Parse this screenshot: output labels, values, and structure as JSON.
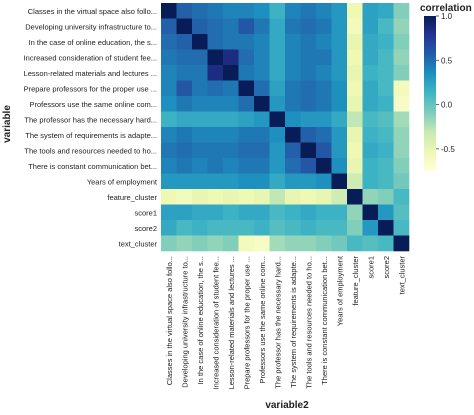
{
  "chart_data": {
    "type": "heatmap",
    "xlabel": "variable2",
    "ylabel": "variable",
    "legend_title": "correlation",
    "colorbar_ticks": [
      {
        "value": 1.0,
        "label": "1.0"
      },
      {
        "value": 0.5,
        "label": "0.5"
      },
      {
        "value": 0.0,
        "label": "0.0"
      },
      {
        "value": -0.5,
        "label": "-0.5"
      }
    ],
    "color_range": [
      -0.75,
      1.0
    ],
    "colorscale": [
      "#ffffd9",
      "#edf8b1",
      "#c7e9b4",
      "#7fcdbb",
      "#41b6c4",
      "#1d91c0",
      "#225ea8",
      "#253494",
      "#081d58"
    ],
    "row_labels": [
      "Classes in the virtual space also follo...",
      "Developing university infrastructure to...",
      "In the case of online education, the s...",
      "Increased consideration of student fee...",
      "Lesson-related materials and lectures ...",
      "Prepare professors for the proper use ...",
      "Professors use the same online com...",
      "The professor has the necessary hard...",
      "The system of requirements is adapte...",
      "The tools and resources needed to ho...",
      "There is constant communication bet...",
      "Years of employment",
      "feature_cluster",
      "score1",
      "score2",
      "text_cluster"
    ],
    "col_labels": [
      "Classes in the virtual space also follo...",
      "Developing university infrastructure to...",
      "In the case of online education, the s...",
      "Increased consideration of student fee...",
      "Lesson-related materials and lectures ...",
      "Prepare professors for the proper use ...",
      "Professors use the same online com...",
      "The professor has the necessary hard...",
      "The system of requirements is adapte...",
      "The tools and resources needed to ho...",
      "There is constant communication bet...",
      "Years of employment",
      "feature_cluster",
      "score1",
      "score2",
      "text_cluster"
    ],
    "values": [
      [
        1.0,
        0.55,
        0.5,
        0.45,
        0.4,
        0.4,
        0.35,
        0.15,
        0.4,
        0.45,
        0.4,
        0.3,
        -0.55,
        0.25,
        0.2,
        -0.1
      ],
      [
        0.55,
        1.0,
        0.55,
        0.5,
        0.45,
        0.6,
        0.45,
        0.2,
        0.45,
        0.5,
        0.45,
        0.3,
        -0.6,
        0.25,
        0.1,
        -0.15
      ],
      [
        0.5,
        0.55,
        1.0,
        0.5,
        0.45,
        0.45,
        0.4,
        0.2,
        0.4,
        0.45,
        0.4,
        0.3,
        -0.5,
        0.2,
        0.15,
        -0.1
      ],
      [
        0.45,
        0.5,
        0.5,
        1.0,
        0.85,
        0.5,
        0.4,
        0.2,
        0.4,
        0.45,
        0.45,
        0.3,
        -0.55,
        0.2,
        0.1,
        -0.15
      ],
      [
        0.4,
        0.45,
        0.45,
        0.85,
        1.0,
        0.45,
        0.4,
        0.2,
        0.4,
        0.45,
        0.4,
        0.3,
        -0.5,
        0.15,
        0.1,
        -0.1
      ],
      [
        0.4,
        0.6,
        0.45,
        0.5,
        0.45,
        1.0,
        0.5,
        0.25,
        0.45,
        0.5,
        0.45,
        0.35,
        -0.55,
        0.2,
        0.1,
        -0.6
      ],
      [
        0.35,
        0.45,
        0.4,
        0.4,
        0.4,
        0.5,
        1.0,
        0.3,
        0.45,
        0.5,
        0.45,
        0.35,
        -0.5,
        0.2,
        0.15,
        -0.65
      ],
      [
        0.15,
        0.2,
        0.2,
        0.2,
        0.2,
        0.25,
        0.3,
        1.0,
        0.35,
        0.3,
        0.3,
        0.2,
        -0.3,
        0.1,
        0.05,
        -0.2
      ],
      [
        0.4,
        0.45,
        0.4,
        0.4,
        0.4,
        0.45,
        0.45,
        0.35,
        1.0,
        0.55,
        0.5,
        0.3,
        -0.5,
        0.15,
        0.1,
        -0.15
      ],
      [
        0.45,
        0.5,
        0.45,
        0.45,
        0.45,
        0.5,
        0.5,
        0.3,
        0.55,
        1.0,
        0.6,
        0.3,
        -0.55,
        0.2,
        0.15,
        -0.15
      ],
      [
        0.4,
        0.45,
        0.4,
        0.45,
        0.4,
        0.45,
        0.45,
        0.3,
        0.5,
        0.6,
        1.0,
        0.35,
        -0.5,
        0.15,
        0.1,
        -0.1
      ],
      [
        0.3,
        0.3,
        0.3,
        0.3,
        0.3,
        0.35,
        0.35,
        0.2,
        0.3,
        0.3,
        0.35,
        1.0,
        -0.35,
        0.15,
        0.1,
        -0.05
      ],
      [
        -0.55,
        -0.6,
        -0.5,
        -0.55,
        -0.5,
        -0.55,
        -0.5,
        -0.3,
        -0.5,
        -0.55,
        -0.5,
        -0.35,
        1.0,
        -0.15,
        -0.1,
        0.1
      ],
      [
        0.25,
        0.25,
        0.2,
        0.2,
        0.15,
        0.2,
        0.2,
        0.1,
        0.15,
        0.2,
        0.15,
        0.15,
        -0.15,
        1.0,
        0.3,
        0.05
      ],
      [
        0.2,
        0.1,
        0.15,
        0.1,
        0.1,
        0.1,
        0.15,
        0.05,
        0.1,
        0.15,
        0.1,
        0.1,
        -0.1,
        0.3,
        1.0,
        0.1
      ],
      [
        -0.1,
        -0.15,
        -0.1,
        -0.15,
        -0.1,
        -0.6,
        -0.65,
        -0.2,
        -0.15,
        -0.15,
        -0.1,
        -0.05,
        0.1,
        0.05,
        0.1,
        1.0
      ]
    ]
  }
}
